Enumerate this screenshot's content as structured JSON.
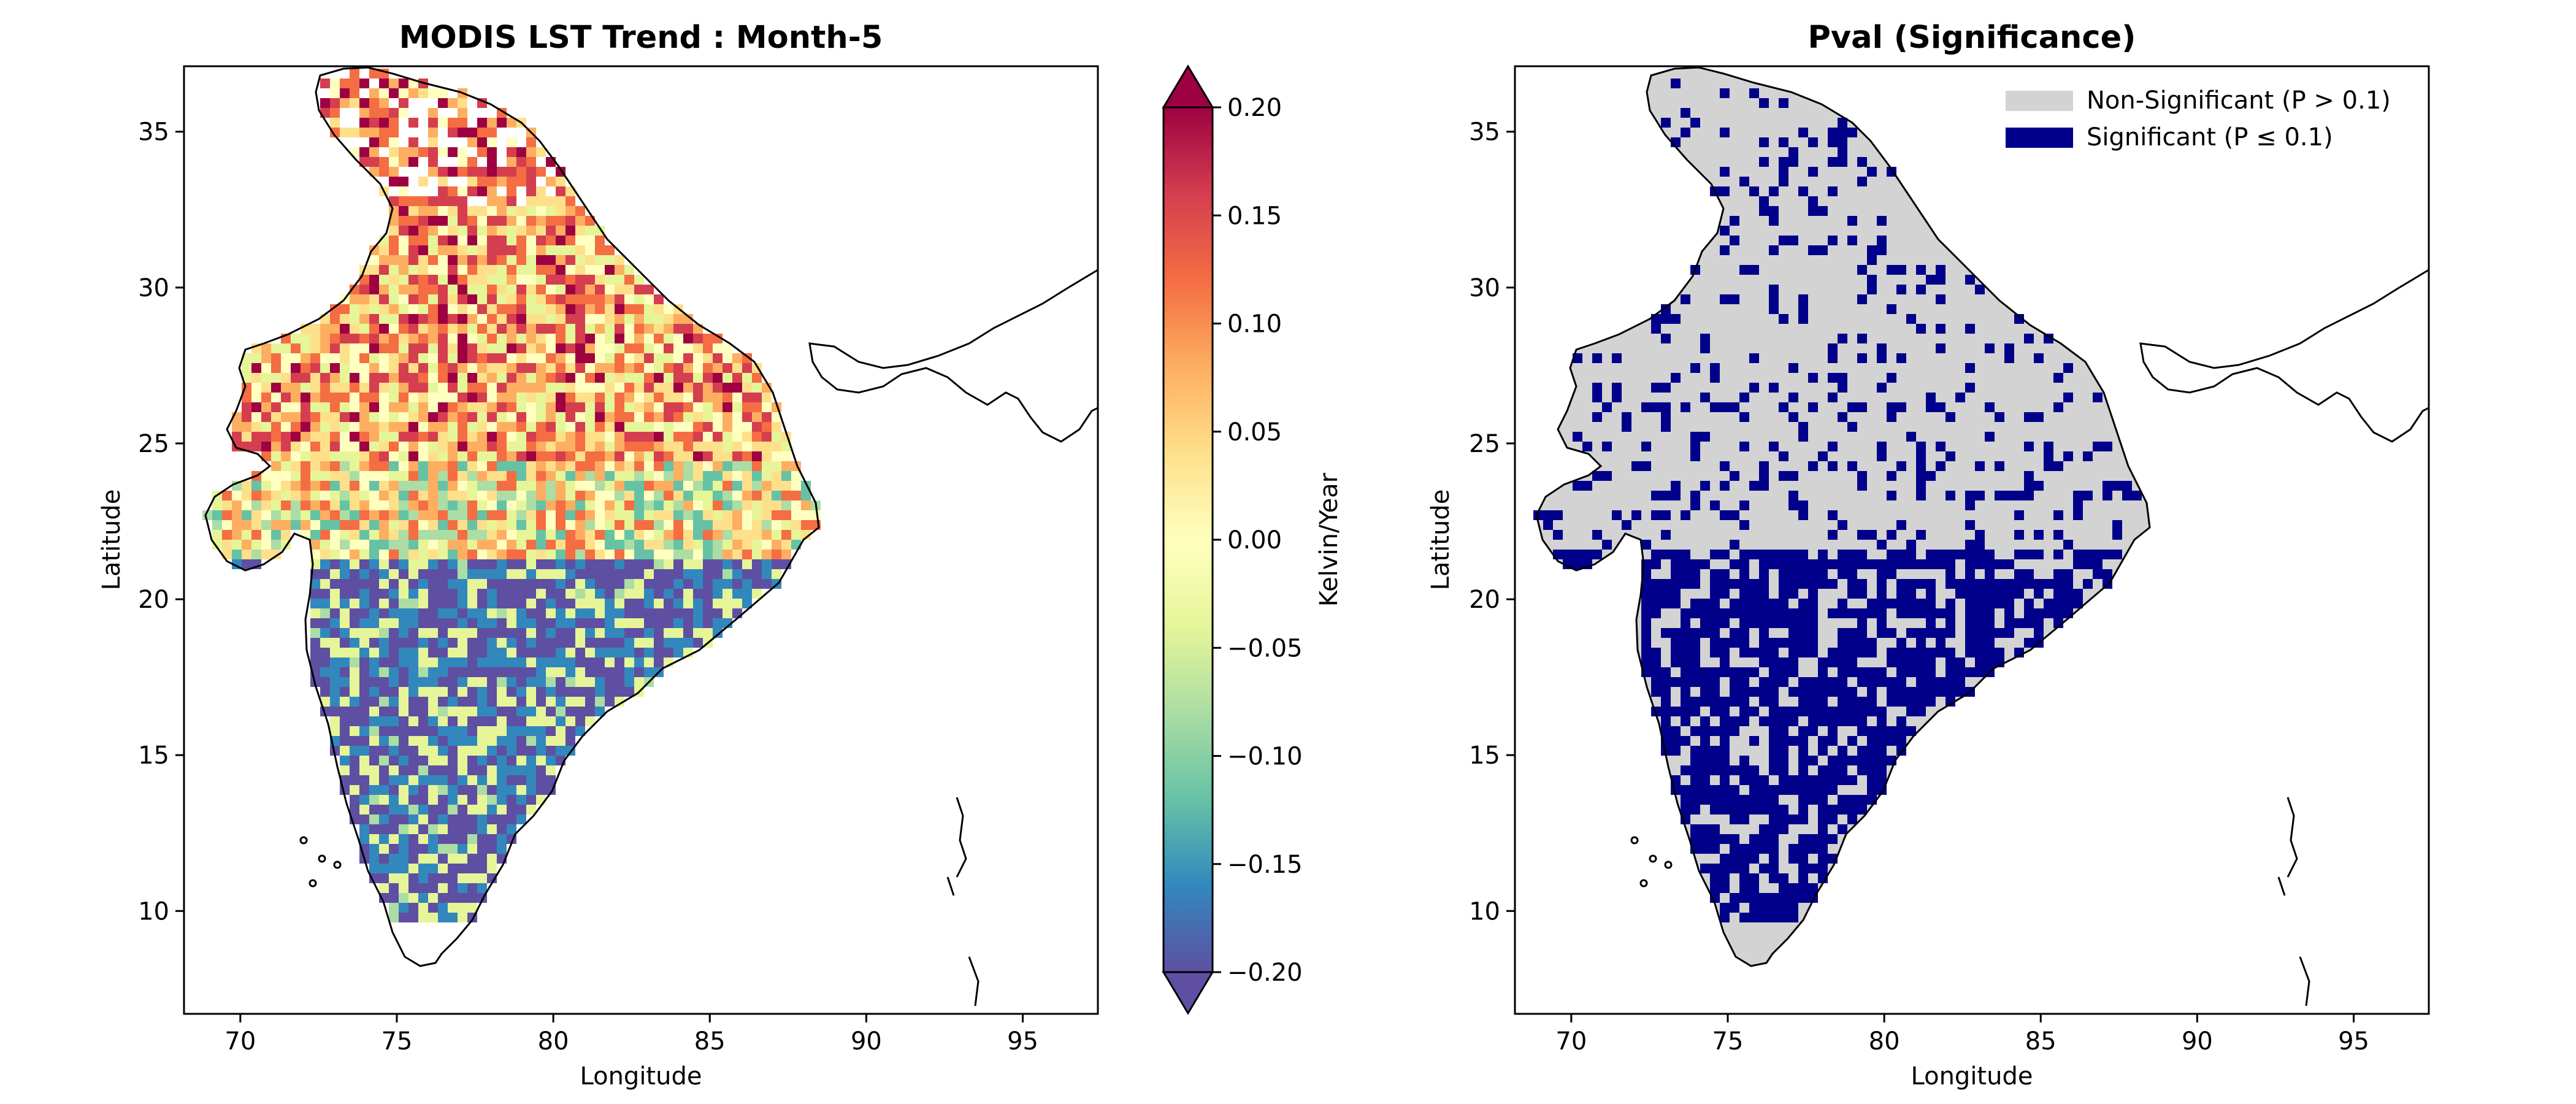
{
  "figure": {
    "left_panel": {
      "title": "MODIS LST Trend : Month-5",
      "xlabel": "Longitude",
      "ylabel": "Latitude",
      "x_ticks": [
        "70",
        "75",
        "80",
        "85",
        "90",
        "95"
      ],
      "y_ticks": [
        "10",
        "15",
        "20",
        "25",
        "30",
        "35"
      ]
    },
    "colorbar": {
      "label": "Kelvin/Year",
      "ticks": [
        "0.20",
        "0.15",
        "0.10",
        "0.05",
        "0.00",
        "−0.05",
        "−0.10",
        "−0.15",
        "−0.20"
      ],
      "colormap": "Spectral",
      "extend": "both",
      "colors": [
        "#5e4fa2",
        "#3288bd",
        "#66c2a5",
        "#abdda4",
        "#e6f598",
        "#ffffbf",
        "#fee08b",
        "#fdae61",
        "#f46d43",
        "#d53e4f",
        "#9e0142"
      ]
    },
    "right_panel": {
      "title": "Pval (Significance)",
      "xlabel": "Longitude",
      "ylabel": "Latitude",
      "x_ticks": [
        "70",
        "75",
        "80",
        "85",
        "90",
        "95"
      ],
      "y_ticks": [
        "10",
        "15",
        "20",
        "25",
        "30",
        "35"
      ],
      "legend": [
        {
          "label": "Non-Significant (P > 0.1)",
          "color": "#d3d3d3"
        },
        {
          "label": "Significant (P ≤ 0.1)",
          "color": "#00008b"
        }
      ]
    },
    "map_extent": {
      "lon": [
        68.2,
        97.4
      ],
      "lat": [
        6.7,
        37.1
      ]
    }
  }
}
